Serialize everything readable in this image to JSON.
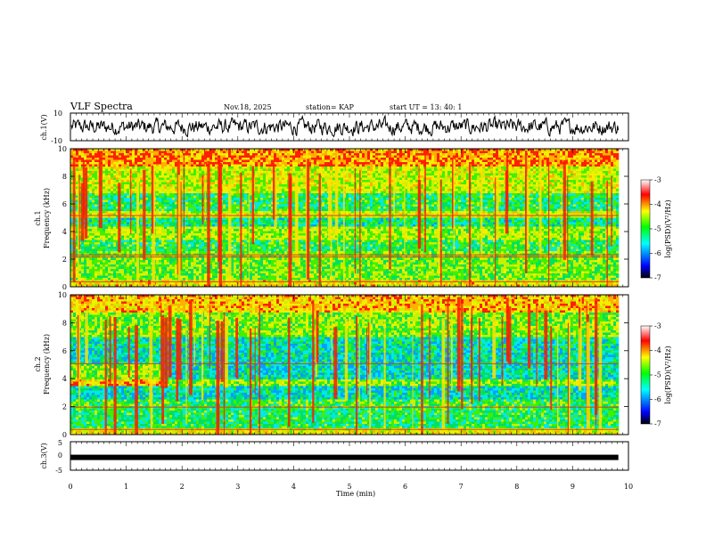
{
  "header": {
    "title": "VLF Spectra",
    "date": "Nov.18, 2025",
    "station": "station= KAP",
    "start": "start  UT  =   13: 40: 1"
  },
  "colors": {
    "waveform": "#000000",
    "colormap": [
      "#000000",
      "#0000ff",
      "#00ffff",
      "#00ff00",
      "#ffff00",
      "#ff0000",
      "#ffffff"
    ]
  },
  "chart_data": [
    {
      "type": "line",
      "name": "ch1-waveform",
      "ylabel": "ch.1(V)",
      "ylim": [
        -10,
        10
      ],
      "yticks": [
        "10",
        "-10"
      ],
      "xlim": [
        0,
        10
      ]
    },
    {
      "type": "heatmap",
      "name": "ch1-spectrogram",
      "ylabel": "ch.1\nFrequency (kHz)",
      "ylim": [
        0,
        10
      ],
      "yticks": [
        "0",
        "2",
        "4",
        "6",
        "8",
        "10"
      ],
      "colorbar": {
        "label": "log(PSD)(V²/Hz)",
        "range": [
          -7,
          -3
        ],
        "ticks": [
          "-3",
          "-4",
          "-5",
          "-6",
          "-7"
        ]
      }
    },
    {
      "type": "heatmap",
      "name": "ch2-spectrogram",
      "ylabel": "ch.2\nFrequency (kHz)",
      "ylim": [
        0,
        10
      ],
      "yticks": [
        "0",
        "2",
        "4",
        "6",
        "8",
        "10"
      ],
      "colorbar": {
        "label": "log(PSD)(V²/Hz)",
        "range": [
          -7,
          -3
        ],
        "ticks": [
          "-3",
          "-4",
          "-5",
          "-6",
          "-7"
        ]
      }
    },
    {
      "type": "line",
      "name": "ch3-waveform",
      "ylabel": "ch.3(V)",
      "ylim": [
        -5,
        5
      ],
      "yticks": [
        "5",
        "0",
        "-5"
      ],
      "xlim": [
        0,
        10
      ],
      "level": -0.5
    }
  ],
  "xaxis": {
    "label": "Time (min)",
    "ticks": [
      "0",
      "1",
      "2",
      "3",
      "4",
      "5",
      "6",
      "7",
      "8",
      "9",
      "10"
    ],
    "data_end": 9.82
  },
  "panel_labels": {
    "ch1_wave": "ch.1(V)",
    "ch1_spec_a": "ch.1",
    "ch1_spec_b": "Frequency (kHz)",
    "ch2_spec_a": "ch.2",
    "ch2_spec_b": "Frequency (kHz)",
    "ch3_wave": "ch.3(V)",
    "cbar1": "log(PSD)(V²/Hz)",
    "cbar2": "log(PSD)(V²/Hz)"
  }
}
